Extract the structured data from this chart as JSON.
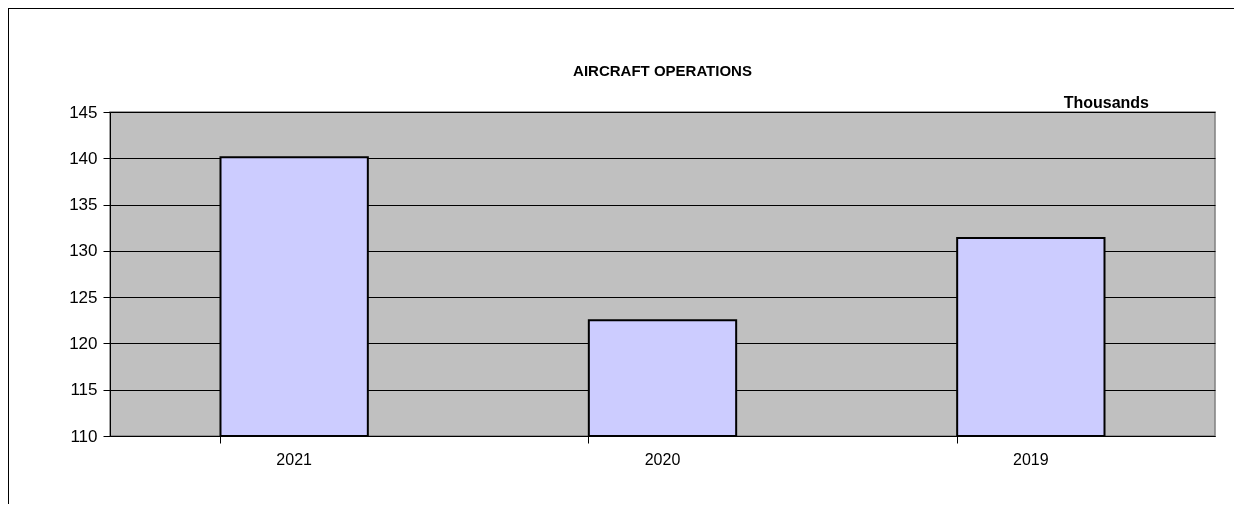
{
  "chart_data": {
    "type": "bar",
    "title": "AIRCRAFT OPERATIONS",
    "annotations": [
      "Thousands"
    ],
    "categories": [
      "2021",
      "2020",
      "2019"
    ],
    "values": [
      140.1,
      122.5,
      131.4
    ],
    "color": "#ccccff",
    "ylim": [
      110,
      145
    ],
    "yticks": [
      110,
      115,
      120,
      125,
      130,
      135,
      140,
      145
    ],
    "grid": "y"
  }
}
